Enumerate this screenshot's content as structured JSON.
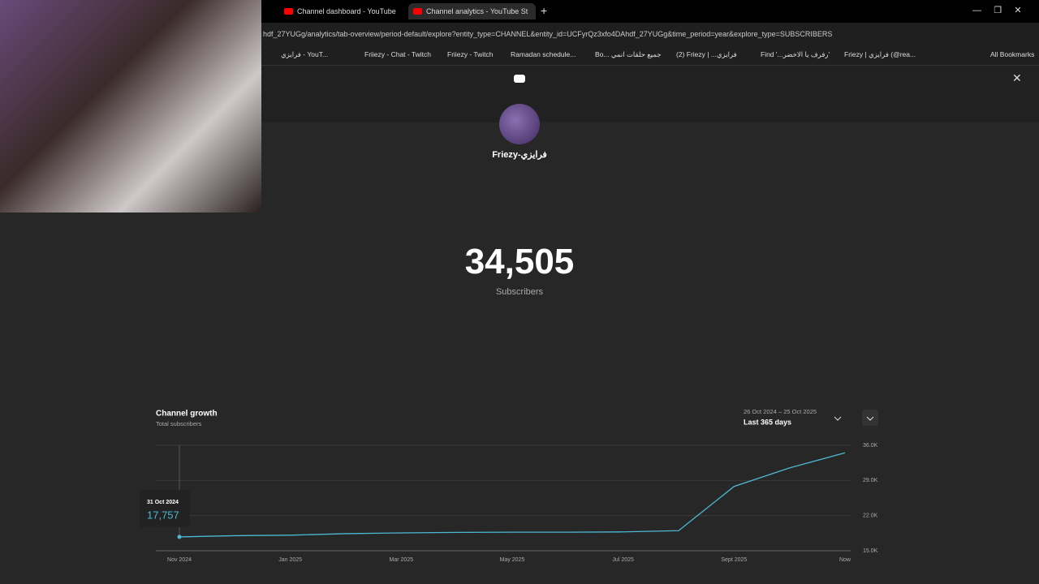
{
  "browser": {
    "tabs": [
      "Channel dashboard - YouTube",
      "Channel analytics - YouTube St"
    ],
    "url": "hdf_27YUGg/analytics/tab-overview/period-default/explore?entity_type=CHANNEL&entity_id=UCFyrQz3xfo4DAhdf_27YUGg&time_period=year&explore_type=SUBSCRIBERS",
    "bookmarks": [
      "فرايزي - YouT...",
      "Friiezy - Chat - Twitch",
      "Friiezy - Twitch",
      "Ramadan schedule...",
      "Bo... جميع حلقات انمي",
      "(2) Friezy | ...فرايزي",
      "Find '...رفرف يا الاخضر'",
      "Friezy | فرايزي (@rea..."
    ],
    "all_bookmarks": "All Bookmarks"
  },
  "channel": {
    "name": "Friezy-فرايزي"
  },
  "stat": {
    "value": "34,505",
    "label": "Subscribers"
  },
  "chart_data": {
    "type": "line",
    "title": "Channel growth",
    "subtitle": "Total subscribers",
    "date_range": "26 Oct 2024 – 25 Oct 2025",
    "period": "Last 365 days",
    "categories": [
      "Nov 2024",
      null,
      "Jan 2025",
      null,
      "Mar 2025",
      null,
      "May 2025",
      null,
      "Jul 2025",
      null,
      "Sept 2025",
      null,
      "Now"
    ],
    "values": [
      17757,
      18000,
      18100,
      18400,
      18550,
      18650,
      18700,
      18700,
      18750,
      19000,
      27800,
      31500,
      34505
    ],
    "color": "#4cb8d4",
    "ylim": [
      15000,
      36000
    ],
    "yticks": [
      {
        "value": 15000,
        "label": "15.0K"
      },
      {
        "value": 22000,
        "label": "22.0K"
      },
      {
        "value": 29000,
        "label": "29.0K"
      },
      {
        "value": 36000,
        "label": "36.0K"
      }
    ],
    "grid": true,
    "tooltip": {
      "date": "31 Oct 2024",
      "value": "17,757"
    }
  }
}
